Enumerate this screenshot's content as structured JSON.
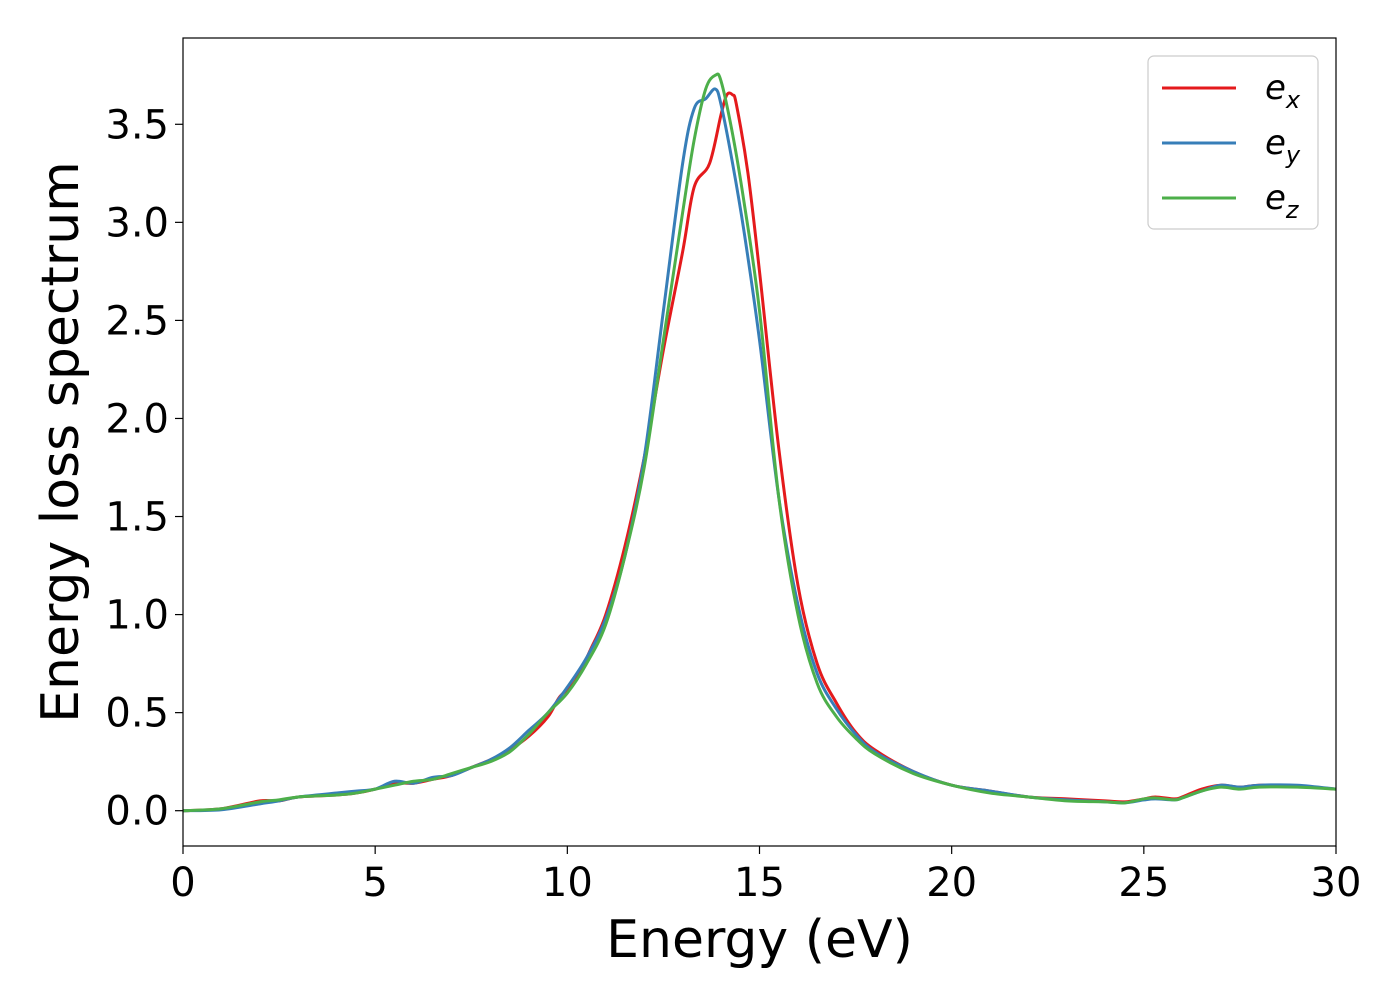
{
  "chart_data": {
    "type": "line",
    "title": "",
    "xlabel": "Energy (eV)",
    "ylabel": "Energy loss spectrum",
    "xlim": [
      0,
      30
    ],
    "ylim": [
      -0.18,
      3.94
    ],
    "xticks": [
      0,
      5,
      10,
      15,
      20,
      25,
      30
    ],
    "yticks": [
      0.0,
      0.5,
      1.0,
      1.5,
      2.0,
      2.5,
      3.0,
      3.5
    ],
    "xtick_labels": [
      "0",
      "5",
      "10",
      "15",
      "20",
      "25",
      "30"
    ],
    "ytick_labels": [
      "0.0",
      "0.5",
      "1.0",
      "1.5",
      "2.0",
      "2.5",
      "3.0",
      "3.5"
    ],
    "grid": false,
    "legend_position": "top-right",
    "series": [
      {
        "name": "e_x",
        "label_base": "e",
        "label_sub": "x",
        "color": "#e41a1c",
        "x": [
          0,
          1,
          2,
          2.5,
          3,
          4,
          4.5,
          5,
          5.5,
          6,
          6.5,
          7,
          7.5,
          8,
          8.5,
          9,
          9.5,
          9.8,
          10.2,
          10.6,
          11,
          11.5,
          12,
          12.5,
          13,
          13.3,
          13.7,
          14,
          14.15,
          14.3,
          14.4,
          14.7,
          15,
          15.5,
          16,
          16.5,
          17,
          17.5,
          18,
          19,
          20,
          21,
          22,
          23,
          24,
          24.5,
          25,
          25.3,
          25.8,
          26,
          26.5,
          27,
          27.5,
          28,
          29,
          30
        ],
        "y": [
          0.0,
          0.01,
          0.05,
          0.05,
          0.07,
          0.08,
          0.09,
          0.11,
          0.14,
          0.14,
          0.16,
          0.18,
          0.22,
          0.26,
          0.31,
          0.38,
          0.48,
          0.58,
          0.66,
          0.82,
          1.0,
          1.35,
          1.8,
          2.35,
          2.85,
          3.18,
          3.3,
          3.55,
          3.65,
          3.65,
          3.6,
          3.25,
          2.75,
          1.85,
          1.15,
          0.75,
          0.55,
          0.4,
          0.31,
          0.2,
          0.13,
          0.1,
          0.07,
          0.06,
          0.05,
          0.045,
          0.06,
          0.07,
          0.06,
          0.07,
          0.11,
          0.13,
          0.12,
          0.13,
          0.125,
          0.11
        ]
      },
      {
        "name": "e_y",
        "label_base": "e",
        "label_sub": "y",
        "color": "#377eb8",
        "x": [
          0,
          1,
          2,
          2.5,
          3,
          4,
          4.5,
          5,
          5.5,
          6,
          6.5,
          7,
          7.5,
          8,
          8.5,
          9,
          9.5,
          10,
          10.5,
          11,
          11.5,
          12,
          12.5,
          13,
          13.3,
          13.6,
          13.85,
          14,
          14.3,
          14.6,
          15,
          15.5,
          16,
          16.5,
          17,
          17.5,
          18,
          19,
          20,
          21,
          22,
          23,
          24,
          24.5,
          25,
          25.3,
          25.8,
          26,
          26.5,
          27,
          27.5,
          28,
          29,
          30
        ],
        "y": [
          0.0,
          0.005,
          0.035,
          0.05,
          0.07,
          0.09,
          0.1,
          0.11,
          0.15,
          0.14,
          0.17,
          0.18,
          0.22,
          0.26,
          0.32,
          0.41,
          0.5,
          0.63,
          0.78,
          0.98,
          1.3,
          1.8,
          2.55,
          3.3,
          3.58,
          3.63,
          3.68,
          3.6,
          3.3,
          2.95,
          2.4,
          1.6,
          1.05,
          0.7,
          0.52,
          0.39,
          0.3,
          0.2,
          0.13,
          0.1,
          0.07,
          0.055,
          0.045,
          0.04,
          0.055,
          0.06,
          0.055,
          0.065,
          0.1,
          0.13,
          0.12,
          0.13,
          0.13,
          0.11
        ]
      },
      {
        "name": "e_z",
        "label_base": "e",
        "label_sub": "z",
        "color": "#4daf4a",
        "x": [
          0,
          1,
          2,
          2.5,
          3,
          4,
          4.5,
          5,
          5.5,
          6,
          6.5,
          7,
          7.5,
          8,
          8.5,
          9,
          9.5,
          10,
          10.5,
          11,
          11.5,
          12,
          12.5,
          13,
          13.3,
          13.6,
          13.85,
          14,
          14.3,
          14.6,
          15,
          15.5,
          16,
          16.5,
          17,
          17.5,
          18,
          19,
          20,
          21,
          22,
          23,
          24,
          24.5,
          25,
          25.3,
          25.8,
          26,
          26.5,
          27,
          27.5,
          28,
          29,
          30
        ],
        "y": [
          0.0,
          0.01,
          0.045,
          0.055,
          0.07,
          0.08,
          0.09,
          0.11,
          0.13,
          0.15,
          0.16,
          0.19,
          0.22,
          0.25,
          0.3,
          0.39,
          0.5,
          0.6,
          0.75,
          0.95,
          1.3,
          1.75,
          2.4,
          3.05,
          3.42,
          3.68,
          3.75,
          3.72,
          3.45,
          3.1,
          2.55,
          1.6,
          1.0,
          0.65,
          0.48,
          0.37,
          0.29,
          0.19,
          0.13,
          0.09,
          0.07,
          0.05,
          0.045,
          0.04,
          0.06,
          0.065,
          0.055,
          0.065,
          0.1,
          0.12,
          0.11,
          0.12,
          0.12,
          0.11
        ]
      }
    ]
  }
}
